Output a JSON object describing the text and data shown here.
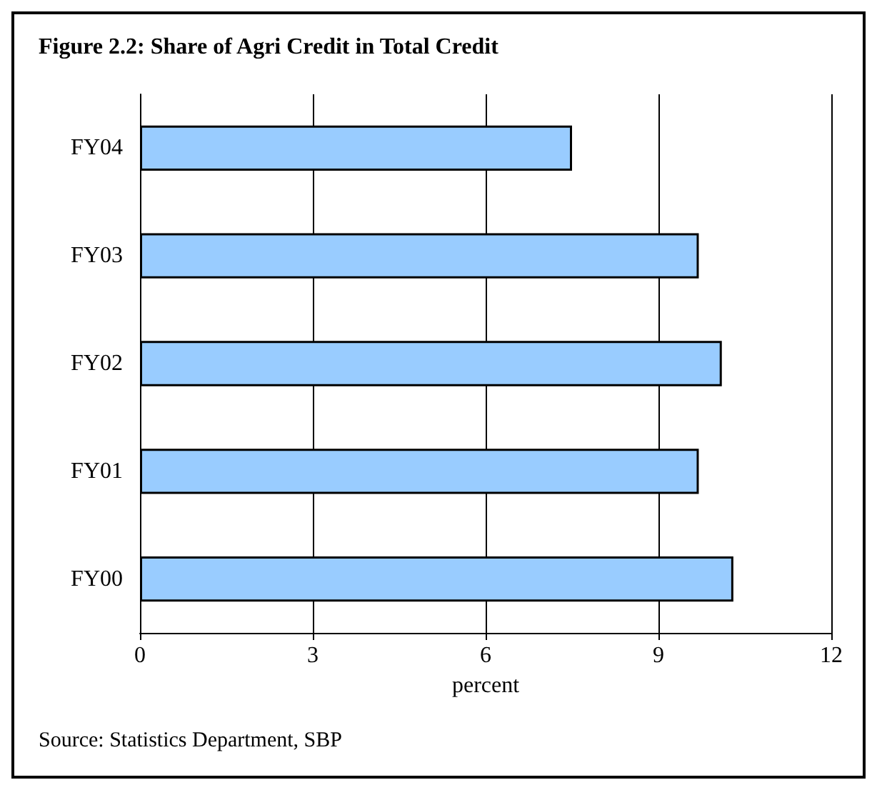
{
  "chart_data": {
    "type": "bar",
    "orientation": "horizontal",
    "title": "Figure 2.2: Share of Agri Credit in Total Credit",
    "categories": [
      "FY04",
      "FY03",
      "FY02",
      "FY01",
      "FY00"
    ],
    "values": [
      7.5,
      9.7,
      10.1,
      9.7,
      10.3
    ],
    "color": "#99ccff",
    "xlim": [
      0,
      12
    ],
    "xticks": [
      0,
      3,
      6,
      9,
      12
    ],
    "xlabel": "percent",
    "grid": "x",
    "annotations": [
      "Source: Statistics Department, SBP"
    ]
  }
}
